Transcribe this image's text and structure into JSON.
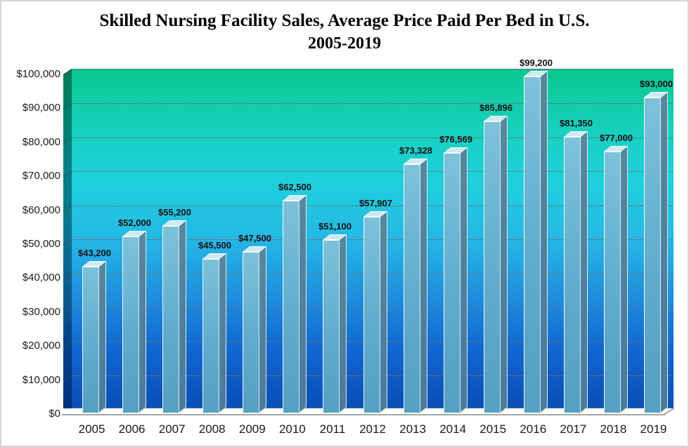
{
  "chart_data": {
    "type": "bar",
    "title": "Skilled Nursing Facility Sales, Average Price Paid Per Bed in U.S.",
    "subtitle": "2005-2019",
    "categories": [
      "2005",
      "2006",
      "2007",
      "2008",
      "2009",
      "2010",
      "2011",
      "2012",
      "2013",
      "2014",
      "2015",
      "2016",
      "2017",
      "2018",
      "2019"
    ],
    "values": [
      43200,
      52000,
      55200,
      45500,
      47500,
      62500,
      51100,
      57907,
      73328,
      76569,
      85896,
      99200,
      81350,
      77000,
      93000
    ],
    "value_labels": [
      "$43,200",
      "$52,000",
      "$55,200",
      "$45,500",
      "$47,500",
      "$62,500",
      "$51,100",
      "$57,907",
      "$73,328",
      "$76,569",
      "$85,896",
      "$99,200",
      "$81,350",
      "$77,000",
      "$93,000"
    ],
    "ytick_labels": [
      "$0",
      "$10,000",
      "$20,000",
      "$30,000",
      "$40,000",
      "$50,000",
      "$60,000",
      "$70,000",
      "$80,000",
      "$90,000",
      "$100,000"
    ],
    "ylim": [
      0,
      100000
    ],
    "ytick_step": 10000,
    "grid": true,
    "legend": false,
    "style_3d": true,
    "colors": {
      "bar_front": "#60ACCD",
      "bar_top": "#CFE9F1",
      "bar_side": "#497B9B",
      "bar_edge": "#FFFFFF",
      "wall_gradient_stops": [
        "#0CC78D",
        "#16D0BC",
        "#1FD0DC",
        "#25B8E5",
        "#1F8FDE",
        "#1166D1",
        "#0A4EB9"
      ],
      "gridline": "#697373",
      "text": "#111111"
    }
  }
}
